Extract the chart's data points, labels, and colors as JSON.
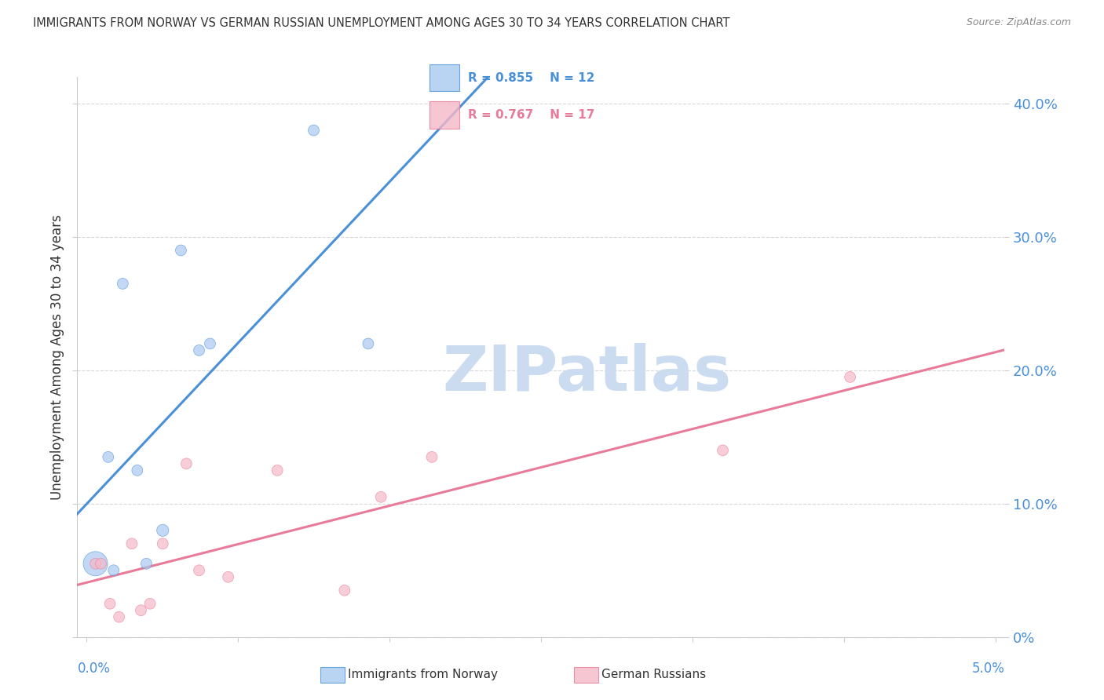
{
  "title": "IMMIGRANTS FROM NORWAY VS GERMAN RUSSIAN UNEMPLOYMENT AMONG AGES 30 TO 34 YEARS CORRELATION CHART",
  "source": "Source: ZipAtlas.com",
  "ylabel": "Unemployment Among Ages 30 to 34 years",
  "xlim": [
    0.0,
    5.0
  ],
  "ylim": [
    0.0,
    42.0
  ],
  "ytick_values": [
    0,
    10,
    20,
    30,
    40
  ],
  "legend1_label": "Immigrants from Norway",
  "legend2_label": "German Russians",
  "norway_R": 0.855,
  "norway_N": 12,
  "german_R": 0.767,
  "german_N": 17,
  "norway_scatter_x": [
    0.05,
    0.12,
    0.15,
    0.2,
    0.28,
    0.33,
    0.42,
    0.52,
    0.62,
    0.68,
    1.25,
    1.55
  ],
  "norway_scatter_y": [
    5.5,
    13.5,
    5.0,
    26.5,
    12.5,
    5.5,
    8.0,
    29.0,
    21.5,
    22.0,
    38.0,
    22.0
  ],
  "norway_scatter_size": [
    500,
    100,
    100,
    100,
    100,
    100,
    120,
    100,
    100,
    100,
    100,
    100
  ],
  "german_scatter_x": [
    0.05,
    0.08,
    0.13,
    0.18,
    0.25,
    0.3,
    0.35,
    0.42,
    0.55,
    0.62,
    0.78,
    1.05,
    1.42,
    1.62,
    1.9,
    3.5,
    4.2
  ],
  "german_scatter_y": [
    5.5,
    5.5,
    2.5,
    1.5,
    7.0,
    2.0,
    2.5,
    7.0,
    13.0,
    5.0,
    4.5,
    12.5,
    3.5,
    10.5,
    13.5,
    14.0,
    19.5
  ],
  "german_scatter_size": [
    100,
    100,
    100,
    100,
    100,
    100,
    100,
    100,
    100,
    100,
    100,
    100,
    100,
    100,
    100,
    100,
    100
  ],
  "norway_line_color": "#4a90d9",
  "german_line_color": "#e87a9a",
  "norway_scatter_color": "#a8c8f0",
  "german_scatter_color": "#f4b8c8",
  "watermark_text": "ZIPatlas",
  "watermark_color": "#ccdcf0",
  "background_color": "#ffffff",
  "grid_color": "#d8d8d8",
  "ytick_color": "#4a90d9",
  "xtick_color": "#4a90d9",
  "ylabel_color": "#333333",
  "title_color": "#333333",
  "source_color": "#888888"
}
